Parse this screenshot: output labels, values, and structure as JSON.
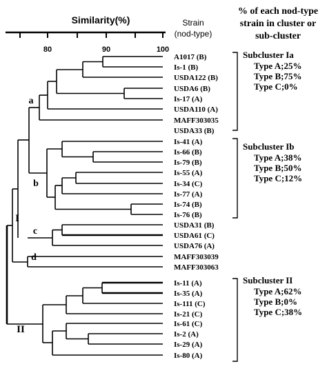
{
  "axis": {
    "title": "Similarity(%)",
    "ticks": [
      "80",
      "90",
      "100"
    ]
  },
  "columns": {
    "strain_header_line1": "Strain",
    "strain_header_line2": "(nod-type)",
    "percent_header_lines": [
      "% of each nod-type",
      "strain in cluster or",
      "sub-cluster"
    ]
  },
  "strains": [
    "A1017 (B)",
    "Is-1 (B)",
    "USDA122 (B)",
    "USDA6 (B)",
    "Is-17 (A)",
    "USDA110 (A)",
    "MAFF303035",
    "USDA33 (B)",
    "Is-41 (A)",
    "Is-66 (B)",
    "Is-79 (B)",
    "Is-55 (A)",
    "Is-34 (C)",
    "Is-77 (A)",
    "Is-74 (B)",
    "Is-76 (B)",
    "USDA31 (B)",
    "USDA61 (C)",
    "USDA76 (A)",
    "MAFF303039",
    "MAFF303063",
    "Is-11 (A)",
    "Is-35 (A)",
    "Is-111 (C)",
    "Is-21 (C)",
    "Is-61 (C)",
    "Is-2 (A)",
    "Is-29 (A)",
    "Is-80 (A)"
  ],
  "cluster_labels": {
    "a": "a",
    "b": "b",
    "c": "c",
    "d": "d",
    "I": "I",
    "II": "II"
  },
  "subclusters": {
    "Ia": {
      "title": "Subcluster Ia",
      "lines": [
        "Type A;25%",
        "Type B;75%",
        "Type C;0%"
      ]
    },
    "Ib": {
      "title": "Subcluster Ib",
      "lines": [
        "Type A;38%",
        "Type B;50%",
        "Type C;12%"
      ]
    },
    "II": {
      "title": "Subcluster II",
      "lines": [
        "Type A;62%",
        "Type B;0%",
        "Type C;38%"
      ]
    }
  }
}
